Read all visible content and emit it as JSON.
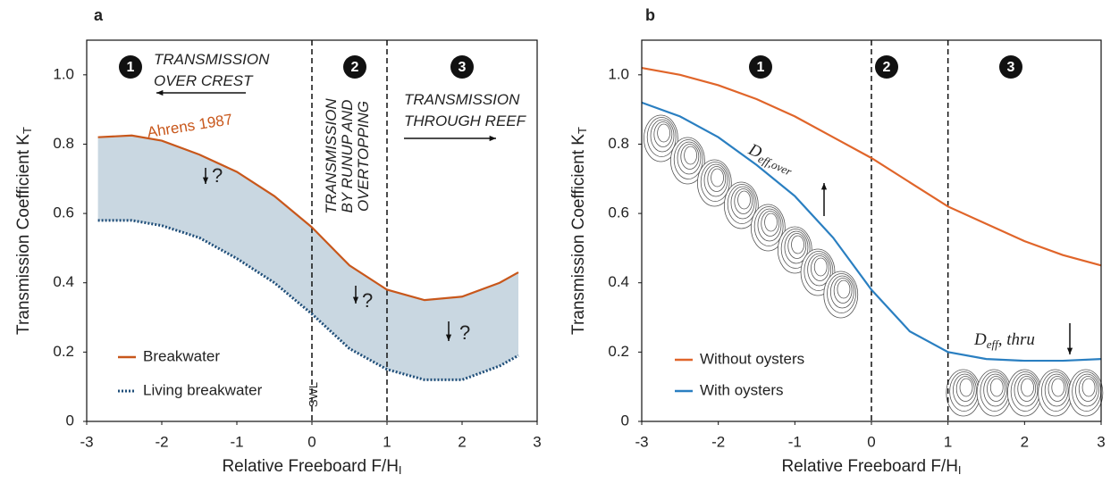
{
  "chart_data": [
    {
      "type": "line",
      "panel": "a",
      "xlabel": "Relative Freeboard F/H",
      "xlabel_sub": "I",
      "ylabel": "Transmission Coefficient K",
      "ylabel_sub": "T",
      "xlim": [
        -3,
        3
      ],
      "ylim": [
        0,
        1.1
      ],
      "xticks": [
        -3,
        -2,
        -1,
        0,
        1,
        2,
        3
      ],
      "yticks": [
        0,
        0.2,
        0.4,
        0.6,
        0.8,
        {
          "value": 1,
          "label": "1.0"
        }
      ],
      "vlines": [
        0,
        1
      ],
      "fill_between": true,
      "fill_color": "#c9d7e1",
      "legend": "lower left",
      "x": [
        -2.85,
        -2.4,
        -2,
        -1.5,
        -1,
        -0.5,
        0,
        0.5,
        1,
        1.5,
        2,
        2.5,
        2.75
      ],
      "series": [
        {
          "name": "Breakwater",
          "color": "#c8571b",
          "style": "solid",
          "values": [
            0.82,
            0.825,
            0.81,
            0.77,
            0.72,
            0.65,
            0.56,
            0.45,
            0.38,
            0.35,
            0.36,
            0.4,
            0.43
          ]
        },
        {
          "name": "Living breakwater",
          "color": "#1f4e79",
          "style": "dotted",
          "values": [
            0.58,
            0.58,
            0.565,
            0.53,
            0.47,
            0.4,
            0.31,
            0.21,
            0.15,
            0.12,
            0.12,
            0.16,
            0.19
          ]
        }
      ],
      "region_labels": [
        "1",
        "2",
        "3"
      ],
      "annotations": [
        "TRANSMISSION",
        "OVER CREST",
        "TRANSMISSION",
        "BY RUNUP AND",
        "OVERTOPPING",
        "TRANSMISSION",
        "THROUGH REEF",
        "Ahrens 1987",
        "?",
        "?",
        "?",
        "SWL"
      ]
    },
    {
      "type": "line",
      "panel": "b",
      "xlabel": "Relative Freeboard F/H",
      "xlabel_sub": "I",
      "ylabel": "Transmission Coefficient K",
      "ylabel_sub": "T",
      "xlim": [
        -3,
        3
      ],
      "ylim": [
        0,
        1.1
      ],
      "xticks": [
        -3,
        -2,
        -1,
        0,
        1,
        2,
        3
      ],
      "yticks": [
        0,
        0.2,
        0.4,
        0.6,
        0.8,
        {
          "value": 1,
          "label": "1.0"
        }
      ],
      "vlines": [
        0,
        1
      ],
      "fill_between": false,
      "legend": "lower left",
      "x": [
        -3,
        -2.5,
        -2,
        -1.5,
        -1,
        -0.5,
        0,
        0.5,
        1,
        1.5,
        2,
        2.5,
        3
      ],
      "series": [
        {
          "name": "Without oysters",
          "color": "#e0652a",
          "style": "solid",
          "values": [
            1.02,
            1.0,
            0.97,
            0.93,
            0.88,
            0.82,
            0.76,
            0.69,
            0.62,
            0.57,
            0.52,
            0.48,
            0.45
          ]
        },
        {
          "name": "With oysters",
          "color": "#2a7fc1",
          "style": "solid",
          "values": [
            0.92,
            0.88,
            0.82,
            0.74,
            0.65,
            0.53,
            0.38,
            0.26,
            0.2,
            0.18,
            0.175,
            0.175,
            0.18
          ]
        }
      ],
      "region_labels": [
        "1",
        "2",
        "3"
      ],
      "annotations": [
        "D",
        "eff,over",
        "D",
        "eff",
        ", thru"
      ]
    }
  ]
}
